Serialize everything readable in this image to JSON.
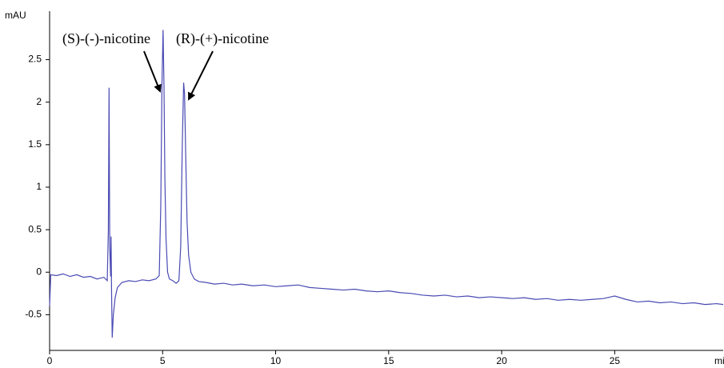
{
  "chart_data": {
    "type": "line",
    "y_label": "mAU",
    "x_label": "mi",
    "annotations": [
      "(S)-(-)-nicotine",
      "(R)-(+)-nicotine"
    ],
    "x": [
      0,
      0.05,
      0.3,
      0.6,
      0.9,
      1.2,
      1.5,
      1.8,
      2.1,
      2.4,
      2.55,
      2.6,
      2.63,
      2.66,
      2.7,
      2.72,
      2.74,
      2.77,
      2.82,
      2.9,
      3.0,
      3.2,
      3.5,
      3.8,
      4.1,
      4.4,
      4.7,
      4.85,
      4.92,
      4.97,
      5.02,
      5.06,
      5.1,
      5.15,
      5.22,
      5.3,
      5.45,
      5.6,
      5.72,
      5.8,
      5.87,
      5.93,
      5.97,
      6.02,
      6.08,
      6.15,
      6.25,
      6.4,
      6.6,
      6.9,
      7.3,
      7.7,
      8.1,
      8.5,
      9.0,
      9.5,
      10.0,
      10.5,
      11.0,
      11.5,
      12,
      12.5,
      13,
      13.5,
      14,
      14.5,
      15,
      15.5,
      16,
      16.5,
      17,
      17.5,
      18,
      18.5,
      19,
      19.5,
      20,
      20.5,
      21,
      21.5,
      22,
      22.5,
      23,
      23.5,
      24,
      24.5,
      25,
      25.5,
      26,
      26.5,
      27,
      27.5,
      28,
      28.5,
      29,
      29.5,
      29.8
    ],
    "series": [
      {
        "color": "#4a4ab4",
        "values": [
          -0.4,
          -0.03,
          -0.04,
          -0.02,
          -0.05,
          -0.03,
          -0.06,
          -0.05,
          -0.08,
          -0.06,
          -0.1,
          0.5,
          2.17,
          0.3,
          -0.05,
          0.42,
          -0.2,
          -0.77,
          -0.5,
          -0.3,
          -0.18,
          -0.12,
          -0.1,
          -0.11,
          -0.09,
          -0.1,
          -0.08,
          -0.04,
          0.8,
          2.2,
          2.85,
          2.2,
          1.1,
          0.4,
          0.0,
          -0.08,
          -0.1,
          -0.13,
          -0.1,
          0.3,
          1.5,
          2.23,
          2.1,
          1.4,
          0.6,
          0.2,
          0.0,
          -0.08,
          -0.11,
          -0.12,
          -0.14,
          -0.13,
          -0.15,
          -0.14,
          -0.16,
          -0.15,
          -0.17,
          -0.16,
          -0.15,
          -0.18,
          -0.19,
          -0.2,
          -0.21,
          -0.2,
          -0.22,
          -0.23,
          -0.22,
          -0.24,
          -0.25,
          -0.27,
          -0.28,
          -0.27,
          -0.29,
          -0.28,
          -0.3,
          -0.29,
          -0.3,
          -0.31,
          -0.3,
          -0.32,
          -0.31,
          -0.33,
          -0.32,
          -0.33,
          -0.32,
          -0.31,
          -0.28,
          -0.32,
          -0.35,
          -0.34,
          -0.36,
          -0.35,
          -0.37,
          -0.36,
          -0.38,
          -0.37,
          -0.38
        ]
      }
    ],
    "xlim": [
      0,
      29.8
    ],
    "xticks": [
      0,
      5,
      10,
      15,
      20,
      25
    ],
    "ylim": [
      -0.92,
      3.07
    ],
    "yticks": [
      -0.5,
      0,
      0.5,
      1,
      1.5,
      2,
      2.5
    ],
    "grid": false
  }
}
